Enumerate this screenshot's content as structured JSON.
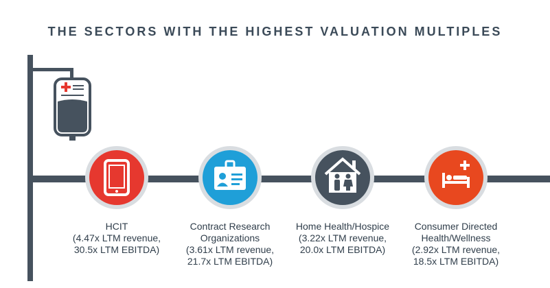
{
  "title": "THE SECTORS WITH THE HIGHEST VALUATION MULTIPLES",
  "colors": {
    "pole": "#46525e",
    "red": "#e6382f",
    "blue": "#1f9fd8",
    "slate": "#46525e",
    "orange": "#e8481f"
  },
  "sectors": [
    {
      "icon": "tablet-icon",
      "color_key": "red",
      "lines": [
        "HCIT",
        "(4.47x LTM revenue,",
        "30.5x LTM EBITDA)"
      ]
    },
    {
      "icon": "id-badge-icon",
      "color_key": "blue",
      "lines": [
        "Contract Research",
        "Organizations",
        "(3.61x LTM revenue,",
        "21.7x LTM EBITDA)"
      ]
    },
    {
      "icon": "house-family-icon",
      "color_key": "slate",
      "lines": [
        "Home Health/Hospice",
        "(3.22x LTM revenue,",
        "20.0x LTM EBITDA)"
      ]
    },
    {
      "icon": "hospital-bed-icon",
      "color_key": "orange",
      "lines": [
        "Consumer Directed",
        "Health/Wellness",
        "(2.92x LTM revenue,",
        "18.5x LTM EBITDA)"
      ]
    }
  ]
}
